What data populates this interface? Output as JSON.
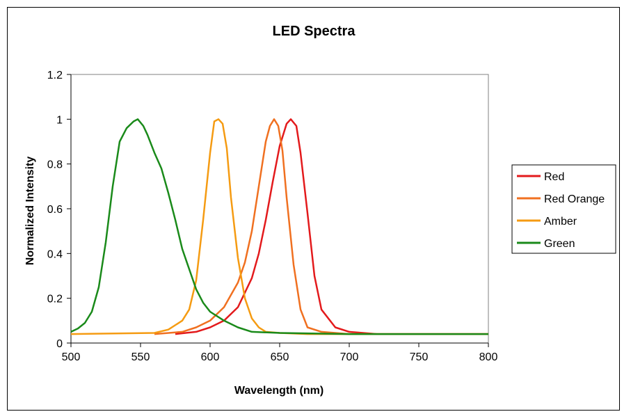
{
  "chart_data": {
    "type": "line",
    "title": "LED Spectra",
    "xlabel": "Wavelength (nm)",
    "ylabel": "Normalized Intensity",
    "xlim": [
      500,
      800
    ],
    "ylim": [
      0,
      1.2
    ],
    "x_ticks": [
      "500",
      "550",
      "600",
      "650",
      "700",
      "750",
      "800"
    ],
    "y_ticks": [
      "0",
      "0.2",
      "0.4",
      "0.6",
      "0.8",
      "1",
      "1.2"
    ],
    "grid": false,
    "legend_position": "right",
    "series": [
      {
        "name": "Red",
        "color": "#e31a1c",
        "x": [
          575,
          590,
          600,
          610,
          620,
          630,
          635,
          640,
          645,
          650,
          655,
          658,
          662,
          665,
          670,
          675,
          680,
          690,
          700,
          710,
          720,
          800
        ],
        "y": [
          0.04,
          0.05,
          0.07,
          0.1,
          0.16,
          0.29,
          0.4,
          0.55,
          0.72,
          0.88,
          0.98,
          1.0,
          0.97,
          0.85,
          0.58,
          0.3,
          0.15,
          0.07,
          0.05,
          0.045,
          0.04,
          0.04
        ]
      },
      {
        "name": "Red Orange",
        "color": "#f07020",
        "x": [
          560,
          580,
          590,
          600,
          610,
          620,
          625,
          630,
          635,
          640,
          643,
          646,
          649,
          652,
          655,
          660,
          665,
          670,
          680,
          700,
          800
        ],
        "y": [
          0.04,
          0.05,
          0.07,
          0.1,
          0.16,
          0.27,
          0.36,
          0.5,
          0.7,
          0.9,
          0.97,
          1.0,
          0.97,
          0.86,
          0.65,
          0.35,
          0.15,
          0.07,
          0.05,
          0.04,
          0.04
        ]
      },
      {
        "name": "Amber",
        "color": "#f59b12",
        "x": [
          500,
          560,
          570,
          580,
          585,
          590,
          595,
          600,
          603,
          606,
          609,
          612,
          615,
          620,
          625,
          630,
          635,
          640,
          650,
          670,
          800
        ],
        "y": [
          0.04,
          0.045,
          0.06,
          0.1,
          0.15,
          0.28,
          0.55,
          0.85,
          0.99,
          1.0,
          0.98,
          0.87,
          0.65,
          0.38,
          0.2,
          0.11,
          0.07,
          0.05,
          0.045,
          0.04,
          0.04
        ]
      },
      {
        "name": "Green",
        "color": "#1a8a1a",
        "x": [
          500,
          505,
          510,
          515,
          520,
          525,
          530,
          535,
          540,
          545,
          548,
          552,
          555,
          560,
          565,
          570,
          575,
          580,
          585,
          590,
          595,
          600,
          610,
          620,
          630,
          650,
          700,
          800
        ],
        "y": [
          0.05,
          0.065,
          0.09,
          0.14,
          0.25,
          0.45,
          0.7,
          0.9,
          0.96,
          0.99,
          1.0,
          0.97,
          0.93,
          0.85,
          0.78,
          0.67,
          0.55,
          0.42,
          0.33,
          0.24,
          0.18,
          0.14,
          0.1,
          0.07,
          0.05,
          0.045,
          0.04,
          0.04
        ]
      }
    ]
  }
}
